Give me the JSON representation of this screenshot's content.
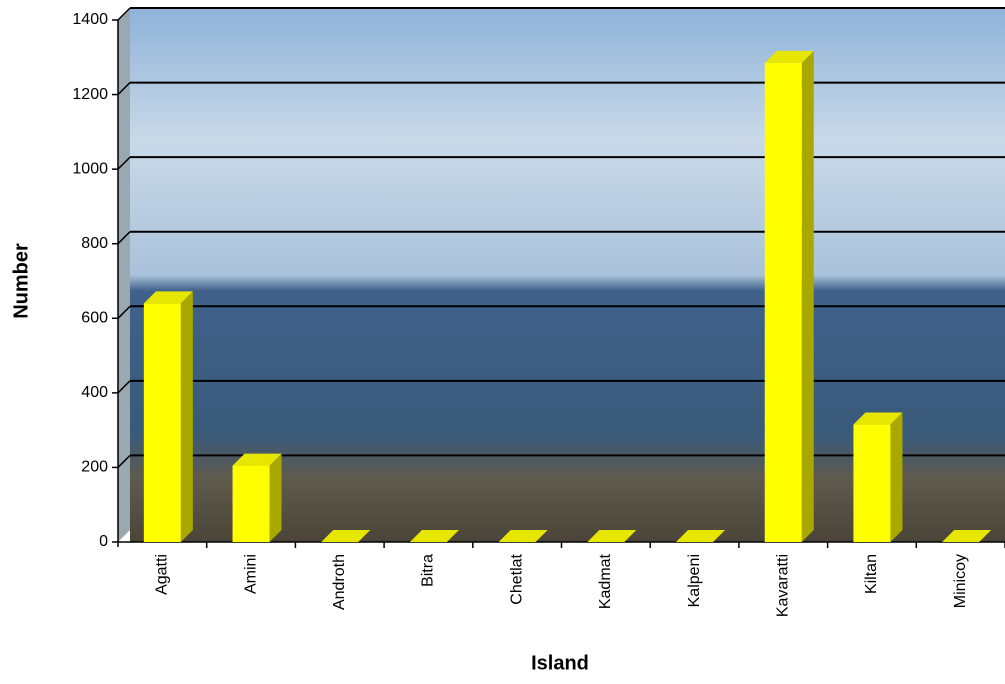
{
  "chart_data": {
    "type": "bar",
    "x_label": "Island",
    "y_label": "Number",
    "categories": [
      "Agatti",
      "Amini",
      "Androth",
      "Bitra",
      "Chetlat",
      "Kadmat",
      "Kalpeni",
      "Kavaratti",
      "Kiltan",
      "Minicoy"
    ],
    "values": [
      640,
      205,
      0,
      0,
      0,
      0,
      0,
      1285,
      315,
      0
    ],
    "color": "#ffff00",
    "ylim": [
      0,
      1400
    ],
    "yticks": [
      0,
      200,
      400,
      600,
      800,
      1000,
      1200,
      1400
    ],
    "grid": true
  }
}
